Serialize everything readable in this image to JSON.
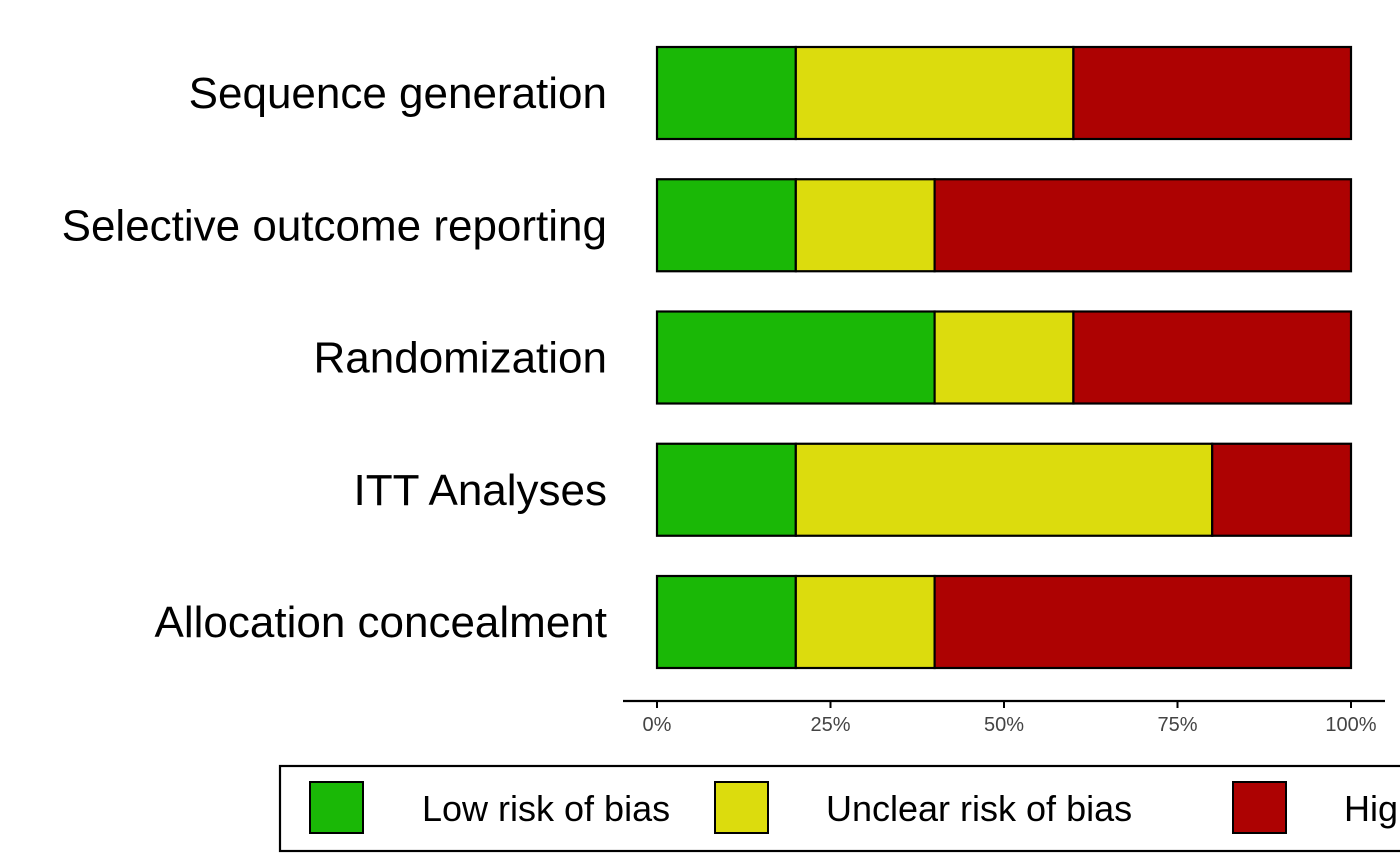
{
  "chart_data": {
    "type": "bar",
    "orientation": "horizontal",
    "stacked": true,
    "categories": [
      "Sequence generation",
      "Selective outcome reporting",
      "Randomization",
      "ITT Analyses",
      "Allocation concealment"
    ],
    "series": [
      {
        "name": "Low risk of bias",
        "color": "#1ab806",
        "values": [
          20,
          20,
          40,
          20,
          20
        ]
      },
      {
        "name": "Unclear risk of bias",
        "color": "#dcdc0d",
        "values": [
          40,
          20,
          20,
          60,
          20
        ]
      },
      {
        "name": "High risk of bias",
        "color": "#ad0202",
        "values": [
          40,
          60,
          40,
          20,
          60
        ]
      }
    ],
    "x_ticks": [
      "0%",
      "25%",
      "50%",
      "75%",
      "100%"
    ],
    "xlim": [
      0,
      100
    ],
    "grid": false,
    "legend_position": "bottom"
  }
}
